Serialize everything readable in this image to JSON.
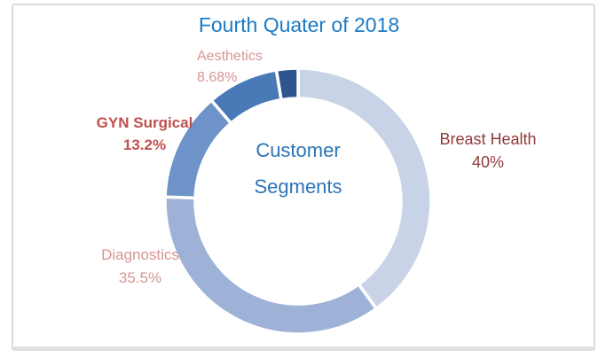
{
  "chart_data": {
    "type": "pie",
    "subtype": "donut",
    "title": "Fourth Quater of 2018",
    "center_label": "Customer Segments",
    "legend_position": "none",
    "start_angle_deg": 0,
    "direction": "clockwise",
    "units": "%",
    "segments": [
      {
        "label": "Breast Health",
        "value": 40,
        "display": "40%",
        "color": "#c9d3e7"
      },
      {
        "label": "Diagnostics",
        "value": 35.5,
        "display": "35.5%",
        "color": "#9eb2d7"
      },
      {
        "label": "GYN Surgical",
        "value": 13.2,
        "display": "13.2%",
        "color": "#6d93c9"
      },
      {
        "label": "Aesthetics",
        "value": 8.68,
        "display": "8.68%",
        "color": "#4979b6"
      },
      {
        "label": "",
        "value": 2.62,
        "display": "",
        "color": "#2e5590"
      }
    ],
    "colors": {
      "title_text": "#1a7ac5",
      "center_text": "#2d74b8",
      "label_light_red": "#d59593",
      "label_bold_red": "#c0504d",
      "label_dark_red": "#8e3b38",
      "segment_gap": "#ffffff"
    }
  }
}
